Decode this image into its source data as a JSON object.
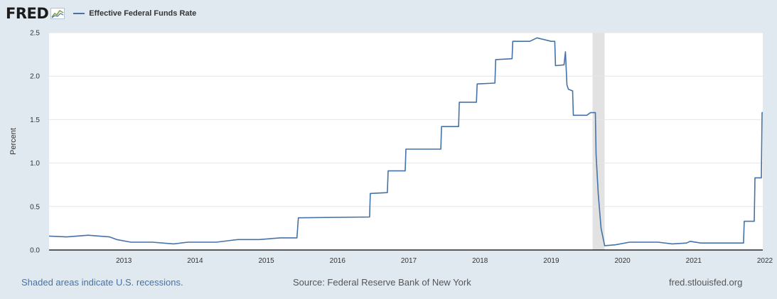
{
  "header": {
    "logo_text": "FRED",
    "logo_icon": "chart-line-icon",
    "legend_label": "Effective Federal Funds Rate"
  },
  "footer": {
    "recession_note": "Shaded areas indicate U.S. recessions.",
    "source": "Source: Federal Reserve Bank of New York",
    "site": "fred.stlouisfed.org"
  },
  "chart_data": {
    "type": "line",
    "ylabel": "Percent",
    "xlim": [
      2012.45,
      2022.47
    ],
    "ylim": [
      0,
      2.5
    ],
    "yticks": [
      "0.0",
      "0.5",
      "1.0",
      "1.5",
      "2.0",
      "2.5"
    ],
    "xticks": [
      "2013",
      "2014",
      "2015",
      "2016",
      "2017",
      "2018",
      "2019",
      "2020",
      "2021",
      "2022"
    ],
    "grid": true,
    "line_color": "#4572a7",
    "recession_color": "#e2e2e2",
    "recessions": [
      [
        2020.08,
        2020.25
      ]
    ],
    "series": [
      {
        "name": "Effective Federal Funds Rate",
        "x": [
          2012.45,
          2012.7,
          2013.0,
          2013.3,
          2013.4,
          2013.6,
          2013.9,
          2014.2,
          2014.4,
          2014.6,
          2014.8,
          2015.0,
          2015.1,
          2015.4,
          2015.7,
          2015.93,
          2015.95,
          2016.95,
          2016.96,
          2017.2,
          2017.21,
          2017.45,
          2017.46,
          2017.95,
          2017.96,
          2018.2,
          2018.21,
          2018.45,
          2018.46,
          2018.71,
          2018.72,
          2018.95,
          2018.96,
          2019.2,
          2019.3,
          2019.5,
          2019.55,
          2019.56,
          2019.68,
          2019.7,
          2019.72,
          2019.74,
          2019.8,
          2019.81,
          2020.0,
          2020.05,
          2020.12,
          2020.13,
          2020.16,
          2020.2,
          2020.25,
          2020.4,
          2020.6,
          2020.8,
          2021.0,
          2021.2,
          2021.4,
          2021.45,
          2021.6,
          2021.8,
          2022.0,
          2022.2,
          2022.21,
          2022.35,
          2022.36,
          2022.45,
          2022.46,
          2022.47
        ],
        "y": [
          0.16,
          0.15,
          0.17,
          0.15,
          0.12,
          0.09,
          0.09,
          0.07,
          0.09,
          0.09,
          0.09,
          0.11,
          0.12,
          0.12,
          0.14,
          0.14,
          0.37,
          0.38,
          0.65,
          0.66,
          0.91,
          0.91,
          1.16,
          1.16,
          1.42,
          1.42,
          1.7,
          1.7,
          1.91,
          1.92,
          2.19,
          2.2,
          2.4,
          2.4,
          2.44,
          2.4,
          2.4,
          2.12,
          2.13,
          2.28,
          1.9,
          1.85,
          1.83,
          1.55,
          1.55,
          1.58,
          1.58,
          1.1,
          0.65,
          0.25,
          0.05,
          0.06,
          0.09,
          0.09,
          0.09,
          0.07,
          0.08,
          0.1,
          0.08,
          0.08,
          0.08,
          0.08,
          0.33,
          0.33,
          0.83,
          0.83,
          1.58,
          1.58
        ]
      }
    ]
  }
}
